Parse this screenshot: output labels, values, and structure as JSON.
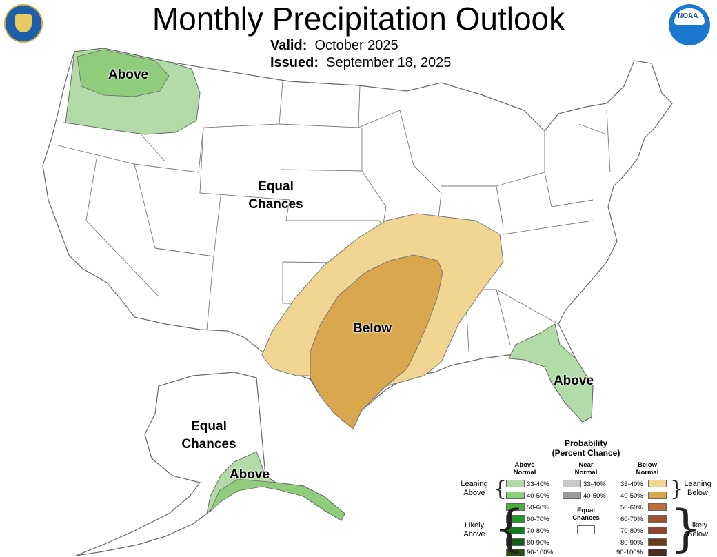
{
  "title": "Monthly Precipitation Outlook",
  "valid": {
    "label": "Valid:",
    "value": "October 2025"
  },
  "issued": {
    "label": "Issued:",
    "value": "September 18, 2025"
  },
  "map_labels": {
    "northwest": "Above",
    "central": [
      "Equal",
      "Chances"
    ],
    "south": "Below",
    "florida": "Above",
    "alaska_ec": [
      "Equal",
      "Chances"
    ],
    "alaska_above": "Above"
  },
  "icons": {
    "left_logo": "commerce-seal-icon",
    "right_logo": "noaa-logo-icon"
  },
  "colors": {
    "above_33_40": "#b3dba8",
    "above_40_50": "#8fcc7c",
    "above_50_60": "#48b339",
    "above_60_70": "#1f9a2a",
    "above_70_80": "#16781f",
    "above_80_90": "#0f5f18",
    "above_90_100": "#2a4d17",
    "near_33_40": "#c8c8c8",
    "near_40_50": "#9a9a9a",
    "below_33_40": "#f1d593",
    "below_40_50": "#d8a64d",
    "below_50_60": "#bc6f3c",
    "below_60_70": "#9c5032",
    "below_70_80": "#8a4630",
    "below_80_90": "#6b3d16",
    "below_90_100": "#4a2a26",
    "ec": "#ffffff"
  },
  "legend": {
    "title_line1": "Probability",
    "title_line2": "(Percent Chance)",
    "above_head": [
      "Above",
      "Normal"
    ],
    "near_head": [
      "Near",
      "Normal"
    ],
    "below_head": [
      "Below",
      "Normal"
    ],
    "above_rows": [
      "33-40%",
      "40-50%",
      "50-60%",
      "60-70%",
      "70-80%",
      "80-90%",
      "90-100%"
    ],
    "near_rows": [
      "33-40%",
      "40-50%"
    ],
    "below_rows": [
      "33-40%",
      "40-50%",
      "50-60%",
      "60-70%",
      "70-80%",
      "80-90%",
      "90-100%"
    ],
    "equal_chances": [
      "Equal",
      "Chances"
    ],
    "leaning_above": [
      "Leaning",
      "Above"
    ],
    "likely_above": [
      "Likely",
      "Above"
    ],
    "leaning_below": [
      "Leaning",
      "Below"
    ],
    "likely_below": [
      "Likely",
      "Below"
    ]
  }
}
